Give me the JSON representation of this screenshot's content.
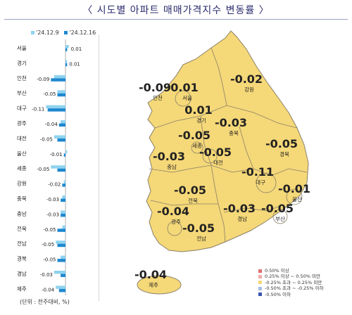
{
  "title": "〈 시도별 아파트 매매가격지수 변동률 〉",
  "legend_top": [
    {
      "label": "'24.12.9",
      "color": "#8fd3ef"
    },
    {
      "label": "'24.12.16",
      "color": "#1e88d0"
    }
  ],
  "unit_note": "(단위 : 전주대비, %)",
  "colors": {
    "bar_prev": "#8fd3ef",
    "bar_curr": "#1e88d0",
    "map_fill": "#f5d878",
    "map_stroke": "#8a8068"
  },
  "chart_data": {
    "type": "bar",
    "orientation": "horizontal",
    "categories": [
      "서울",
      "경기",
      "인천",
      "부산",
      "대구",
      "광주",
      "대전",
      "울산",
      "세종",
      "강원",
      "충북",
      "충남",
      "전북",
      "전남",
      "경북",
      "경남",
      "제주"
    ],
    "series": [
      {
        "name": "'24.12.9",
        "values": [
          0.02,
          0.01,
          -0.07,
          -0.05,
          -0.12,
          -0.03,
          -0.07,
          0.01,
          -0.09,
          -0.01,
          -0.02,
          -0.03,
          -0.02,
          -0.06,
          -0.03,
          -0.07,
          -0.06
        ]
      },
      {
        "name": "'24.12.16",
        "values": [
          0.01,
          0.01,
          -0.09,
          -0.05,
          -0.11,
          -0.04,
          -0.05,
          -0.01,
          -0.05,
          -0.02,
          -0.03,
          -0.03,
          -0.05,
          -0.05,
          -0.05,
          -0.03,
          -0.04
        ]
      }
    ],
    "data_labels": [
      "0.01",
      "0.01",
      "-0.09",
      "-0.05",
      "-0.11",
      "-0.04",
      "-0.05",
      "-0.01",
      "-0.05",
      "-0.02",
      "-0.03",
      "-0.03",
      "-0.05",
      "-0.05",
      "-0.05",
      "-0.03",
      "-0.04"
    ]
  },
  "map": {
    "regions": [
      {
        "name": "인천",
        "value": "-0.09"
      },
      {
        "name": "서울",
        "value": "0.01"
      },
      {
        "name": "강원",
        "value": "-0.02"
      },
      {
        "name": "경기",
        "value": "0.01"
      },
      {
        "name": "충북",
        "value": "-0.03"
      },
      {
        "name": "세종",
        "value": "-0.05"
      },
      {
        "name": "대전",
        "value": "-0.05"
      },
      {
        "name": "충남",
        "value": "-0.03"
      },
      {
        "name": "경북",
        "value": "-0.05"
      },
      {
        "name": "대구",
        "value": "-0.11"
      },
      {
        "name": "전북",
        "value": "-0.05"
      },
      {
        "name": "울산",
        "value": "-0.01"
      },
      {
        "name": "광주",
        "value": "-0.04"
      },
      {
        "name": "경남",
        "value": "-0.03"
      },
      {
        "name": "부산",
        "value": "-0.05"
      },
      {
        "name": "전남",
        "value": "-0.05"
      },
      {
        "name": "제주",
        "value": "-0.04"
      }
    ],
    "legend": [
      {
        "label": "0.50% 이상",
        "color": "#e07070"
      },
      {
        "label": "0.25% 이상 ~ 0.50% 미만",
        "color": "#f3aaa8"
      },
      {
        "label": "-0.25% 초과 ~ 0.25% 미만",
        "color": "#f5d878"
      },
      {
        "label": "-0.50% 초과 ~ -0.25% 이하",
        "color": "#a9bde6"
      },
      {
        "label": "-0.50% 이하",
        "color": "#3c55b0"
      }
    ]
  }
}
